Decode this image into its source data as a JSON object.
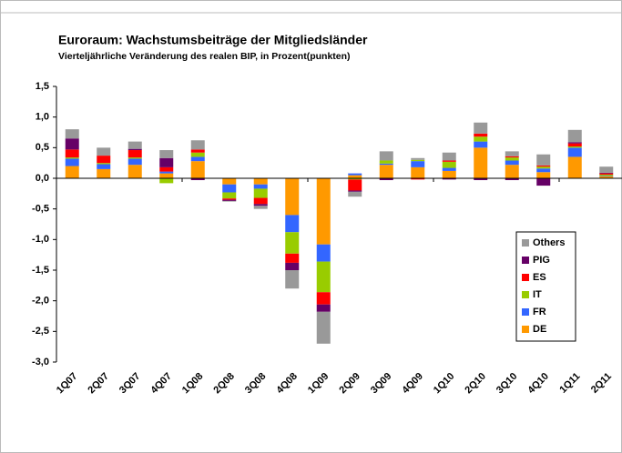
{
  "chart_data": {
    "type": "stacked_bar",
    "title": "Euroraum: Wachstumsbeiträge der Mitgliedsländer",
    "subtitle": "Vierteljährliche Veränderung des realen BIP, in Prozent(punkten)",
    "categories": [
      "1Q07",
      "2Q07",
      "3Q07",
      "4Q07",
      "1Q08",
      "2Q08",
      "3Q08",
      "4Q08",
      "1Q09",
      "2Q09",
      "3Q09",
      "4Q09",
      "1Q10",
      "2Q10",
      "3Q10",
      "4Q10",
      "1Q11",
      "2Q11"
    ],
    "series": [
      {
        "name": "DE",
        "color": "#ff9900",
        "values": [
          0.2,
          0.15,
          0.22,
          0.08,
          0.28,
          -0.1,
          -0.1,
          -0.6,
          -1.08,
          0.05,
          0.22,
          0.18,
          0.12,
          0.5,
          0.22,
          0.1,
          0.35,
          0.03
        ]
      },
      {
        "name": "FR",
        "color": "#3366ff",
        "values": [
          0.12,
          0.08,
          0.1,
          0.03,
          0.07,
          -0.13,
          -0.07,
          -0.28,
          -0.28,
          0.03,
          0.02,
          0.1,
          0.05,
          0.1,
          0.07,
          0.06,
          0.15,
          0.01
        ]
      },
      {
        "name": "IT",
        "color": "#99cc00",
        "values": [
          0.02,
          0.02,
          0.02,
          -0.08,
          0.07,
          -0.1,
          -0.15,
          -0.35,
          -0.5,
          -0.02,
          0.05,
          0.02,
          0.1,
          0.08,
          0.05,
          0.03,
          0.02,
          0.02
        ]
      },
      {
        "name": "ES",
        "color": "#ff0000",
        "values": [
          0.13,
          0.12,
          0.12,
          0.07,
          0.05,
          -0.02,
          -0.1,
          -0.15,
          -0.2,
          -0.18,
          0.0,
          -0.02,
          0.02,
          0.05,
          0.02,
          0.02,
          0.05,
          0.02
        ]
      },
      {
        "name": "PIG",
        "color": "#660066",
        "values": [
          0.18,
          0.0,
          0.02,
          0.15,
          -0.03,
          -0.02,
          -0.03,
          -0.12,
          -0.12,
          -0.02,
          -0.03,
          0.0,
          -0.02,
          -0.03,
          -0.03,
          -0.12,
          0.02,
          0.01
        ]
      },
      {
        "name": "Others",
        "color": "#999999",
        "values": [
          0.15,
          0.13,
          0.12,
          0.13,
          0.15,
          -0.01,
          -0.05,
          -0.3,
          -0.52,
          -0.08,
          0.15,
          0.03,
          0.13,
          0.18,
          0.08,
          0.18,
          0.2,
          0.1
        ]
      }
    ],
    "ylim": [
      -3.0,
      1.5
    ],
    "yticks": [
      {
        "value": 1.5,
        "label": "1,5"
      },
      {
        "value": 1.0,
        "label": "1,0"
      },
      {
        "value": 0.5,
        "label": "0,5"
      },
      {
        "value": 0.0,
        "label": "0,0"
      },
      {
        "value": -0.5,
        "label": "-0,5"
      },
      {
        "value": -1.0,
        "label": "-1,0"
      },
      {
        "value": -1.5,
        "label": "-1,5"
      },
      {
        "value": -2.0,
        "label": "-2,0"
      },
      {
        "value": -2.5,
        "label": "-2,5"
      },
      {
        "value": -3.0,
        "label": "-3,0"
      }
    ],
    "legend": "right"
  }
}
